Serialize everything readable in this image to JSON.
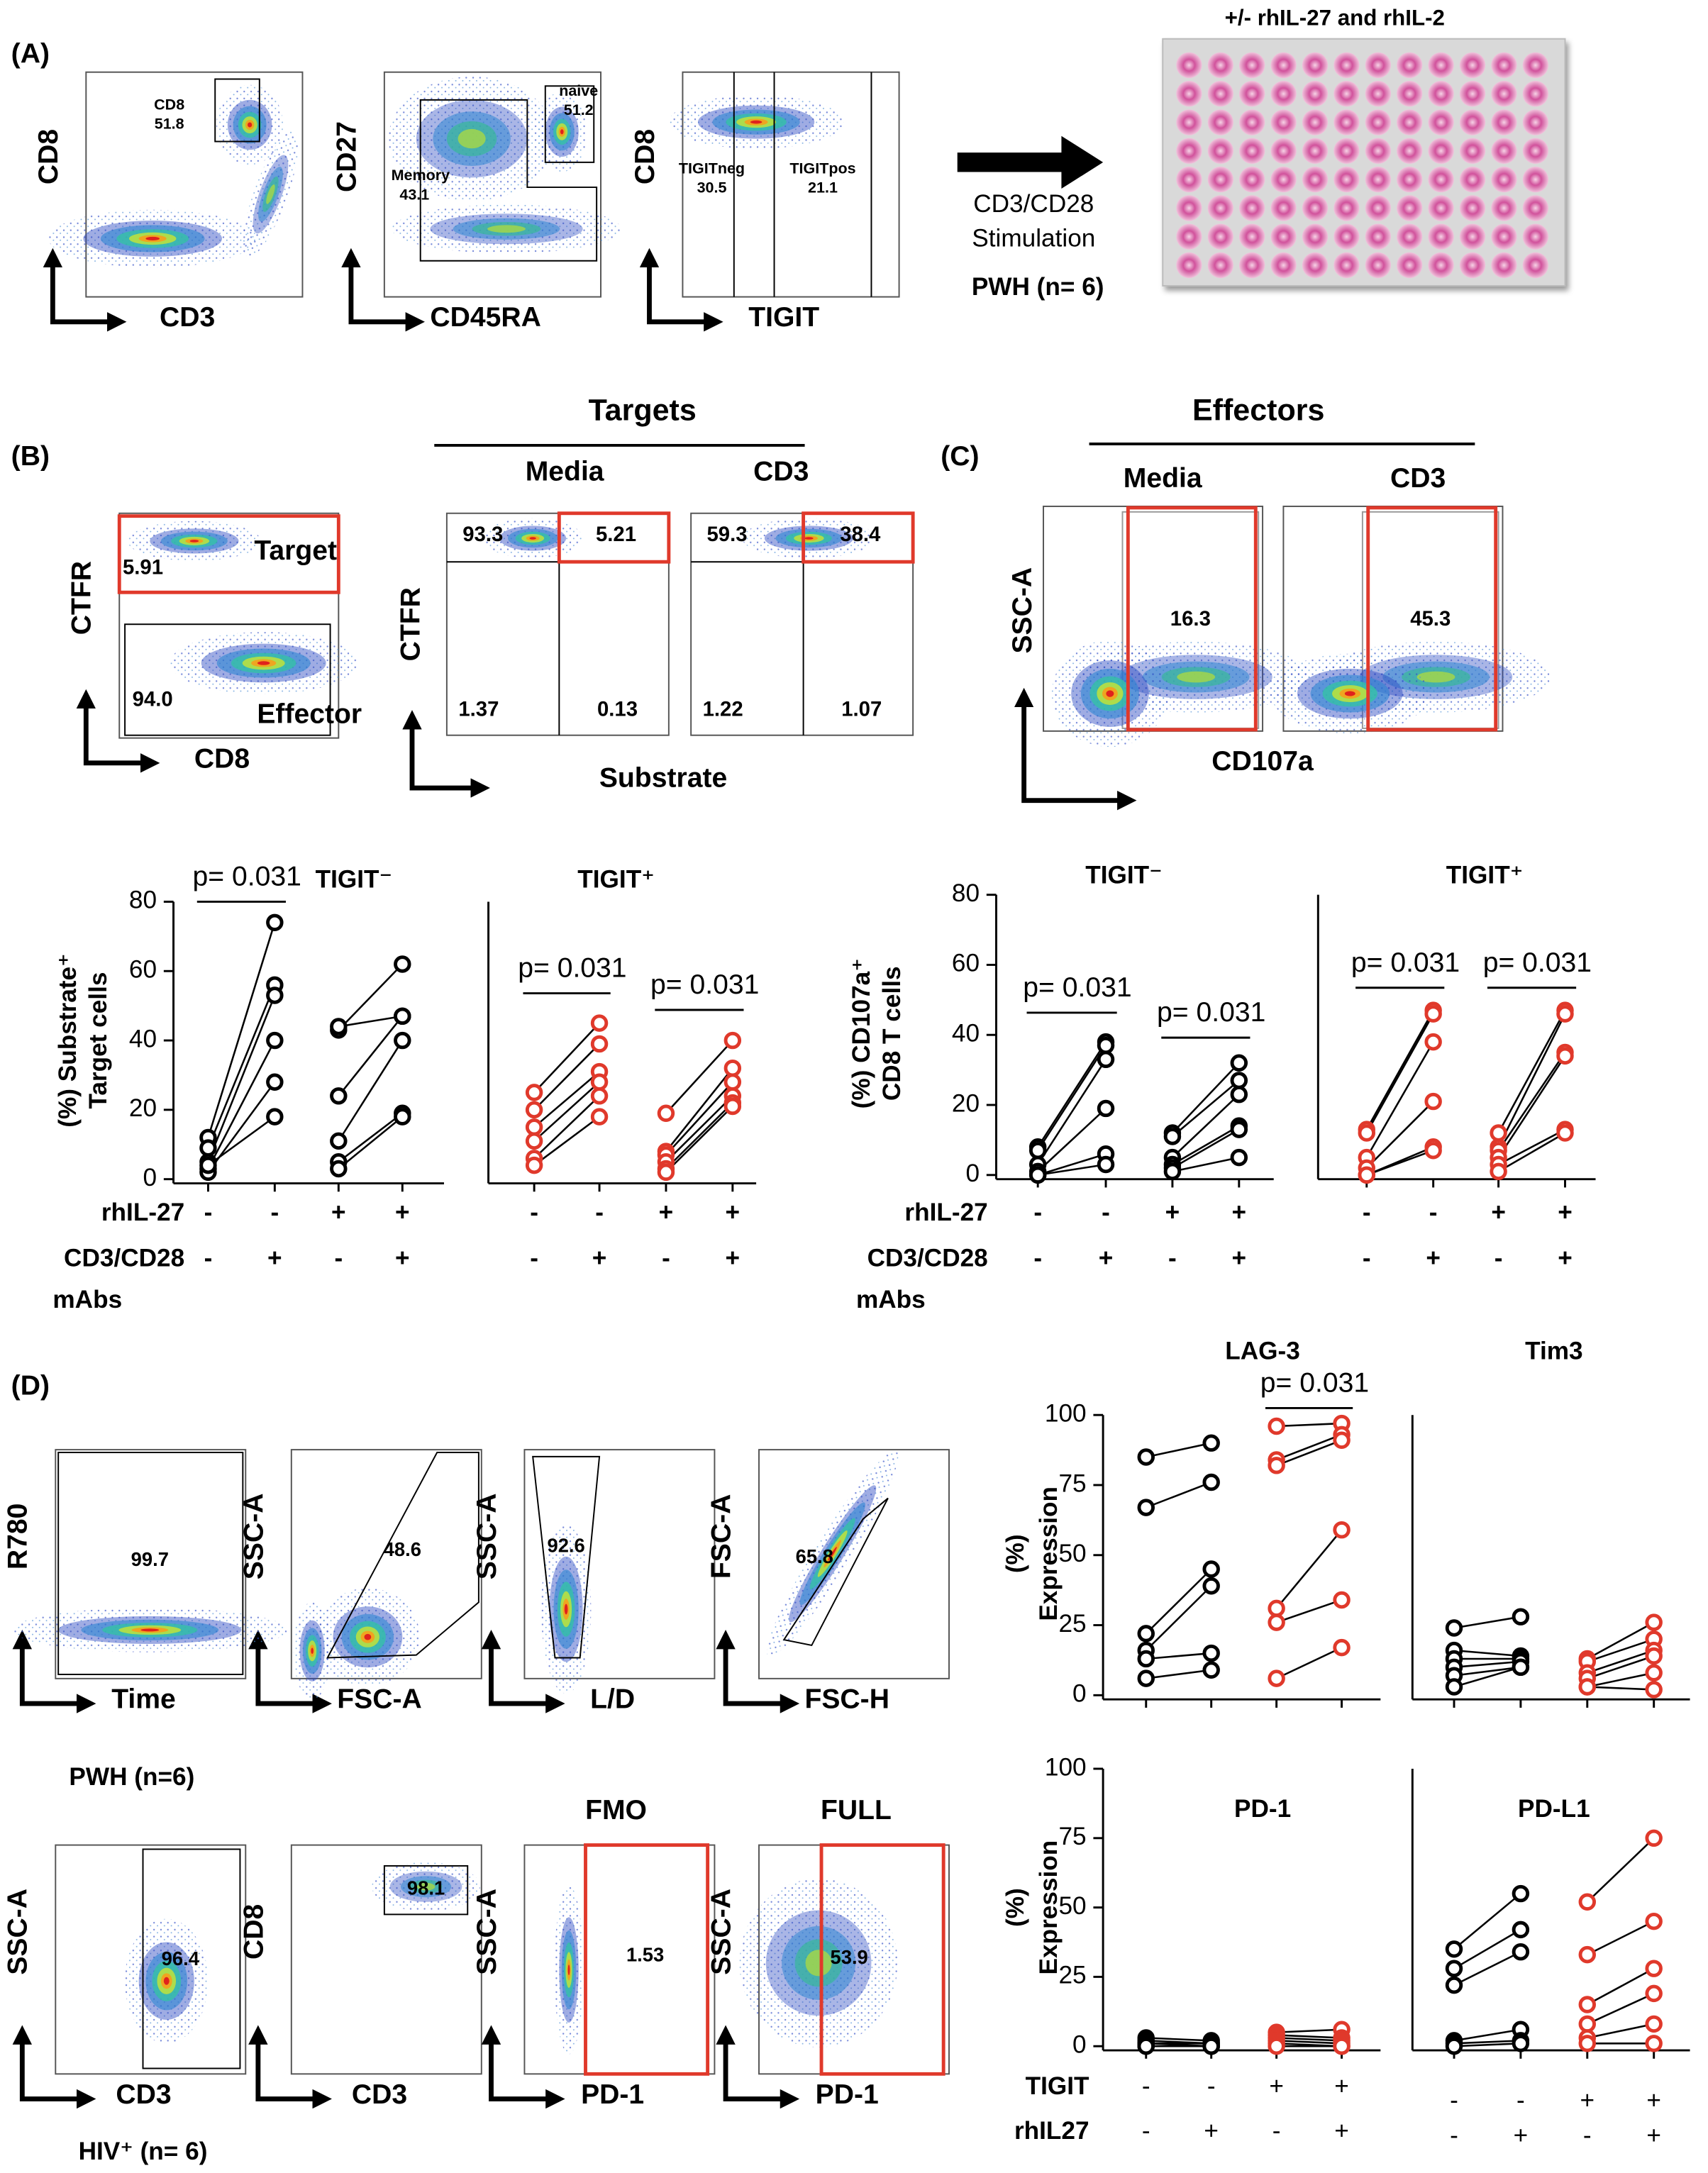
{
  "figure": {
    "panel_labels": [
      "(A)",
      "(B)",
      "(C)",
      "(D)"
    ],
    "a": {
      "plots": [
        {
          "y": "CD8",
          "x": "CD3",
          "gates": [
            "CD8",
            "51.8"
          ]
        },
        {
          "y": "CD27",
          "x": "CD45RA",
          "gates": [
            "naive",
            "51.2",
            "Memory",
            "43.1"
          ]
        },
        {
          "y": "CD8",
          "x": "TIGIT",
          "gates": [
            "TIGITneg",
            "30.5",
            "TIGITpos",
            "21.1"
          ]
        }
      ],
      "stimulation": [
        "CD3/CD28",
        "Stimulation"
      ],
      "cohort": "PWH (n= 6)",
      "plate_title": "+/- rhIL-27 and rhIL-2"
    },
    "b": {
      "plots": [
        {
          "y": "CTFR",
          "x": "CD8",
          "gates": [
            "Target",
            "5.91",
            "94.0",
            "Effector"
          ]
        }
      ],
      "targets": "Targets",
      "columns": [
        "Media",
        "CD3"
      ],
      "quadrants": [
        [
          "93.3",
          "5.21",
          "1.37",
          "0.13"
        ],
        [
          "59.3",
          "38.4",
          "1.22",
          "1.07"
        ]
      ],
      "y": "CTFR",
      "x": "Substrate"
    },
    "c": {
      "effectors": "Effectors",
      "columns": [
        "Media",
        "CD3"
      ],
      "gates": [
        "16.3",
        "45.3"
      ],
      "y": "SSC-A",
      "x": "CD107a"
    },
    "d": {
      "plots": [
        {
          "y": "R780",
          "x": "Time",
          "gate": "99.7"
        },
        {
          "y": "SSC-A",
          "x": "FSC-A",
          "gate": "48.6"
        },
        {
          "y": "SSC-A",
          "x": "L/D",
          "gate": "92.6"
        },
        {
          "y": "FSC-A",
          "x": "FSC-H",
          "gate": "65.8"
        },
        {
          "y": "SSC-A",
          "x": "CD3",
          "gate": "96.4"
        },
        {
          "y": "CD8",
          "x": "CD3",
          "gate": "98.1"
        },
        {
          "y": "SSC-A",
          "x": "PD-1",
          "gate": "1.53",
          "header": "FMO"
        },
        {
          "y": "SSC-A",
          "x": "PD-1",
          "gate": "53.9",
          "header": "FULL"
        }
      ],
      "cohort": "PWH (n=6)",
      "subset": "HIV⁺ (n= 6)"
    }
  },
  "conditions": {
    "bc": {
      "rows": [
        {
          "label": "rhIL-27",
          "signs": [
            "-",
            "-",
            "+",
            "+"
          ]
        },
        {
          "label": "CD3/CD28",
          "signs": [
            "-",
            "+",
            "-",
            "+"
          ]
        }
      ],
      "unit": "mAbs"
    },
    "d": {
      "rows": [
        {
          "label": "TIGIT",
          "signs": [
            "-",
            "-",
            "+",
            "+"
          ]
        },
        {
          "label": "rhIL27",
          "signs": [
            "-",
            "+",
            "-",
            "+"
          ]
        }
      ]
    }
  },
  "chart_data": [
    {
      "type": "paired-dot",
      "title": "TIGIT⁻",
      "ylabel": [
        "(%) Substrate⁺",
        "Target cells"
      ],
      "ylim": [
        0,
        80
      ],
      "yticks": [
        0,
        20,
        40,
        60,
        80
      ],
      "groups": [
        {
          "color": "#000000",
          "values": [
            12,
            9,
            5,
            3,
            2,
            4
          ]
        },
        {
          "color": "#000000",
          "values": [
            74,
            56,
            53,
            40,
            28,
            18
          ]
        },
        {
          "color": "#000000",
          "values": [
            43,
            44,
            24,
            11,
            5,
            3
          ]
        },
        {
          "color": "#000000",
          "values": [
            62,
            47,
            47,
            40,
            19,
            18
          ]
        }
      ],
      "pairs": [
        [
          0,
          1
        ],
        [
          2,
          3
        ]
      ],
      "annotations": [
        {
          "text": "p= 0.031",
          "groups": [
            0,
            1
          ]
        }
      ]
    },
    {
      "type": "paired-dot",
      "title": "TIGIT⁺",
      "ylim": [
        0,
        80
      ],
      "groups": [
        {
          "color": "#e0392b",
          "values": [
            25,
            20,
            15,
            11,
            6,
            4
          ]
        },
        {
          "color": "#e0392b",
          "values": [
            45,
            39,
            31,
            28,
            24,
            18
          ]
        },
        {
          "color": "#e0392b",
          "values": [
            19,
            8,
            7,
            5,
            3,
            2
          ]
        },
        {
          "color": "#e0392b",
          "values": [
            40,
            32,
            28,
            24,
            22,
            21
          ]
        }
      ],
      "pairs": [
        [
          0,
          1
        ],
        [
          2,
          3
        ]
      ],
      "annotations": [
        {
          "text": "p= 0.031",
          "groups": [
            0,
            1
          ]
        },
        {
          "text": "p= 0.031",
          "groups": [
            2,
            3
          ]
        }
      ]
    },
    {
      "type": "paired-dot",
      "title": "TIGIT⁻",
      "ylabel": [
        "(%) CD107a⁺",
        "CD8 T cells"
      ],
      "ylim": [
        0,
        80
      ],
      "yticks": [
        0,
        20,
        40,
        60,
        80
      ],
      "groups": [
        {
          "color": "#000000",
          "values": [
            8,
            7,
            3,
            1,
            0,
            0
          ]
        },
        {
          "color": "#000000",
          "values": [
            38,
            37,
            33,
            19,
            6,
            3
          ]
        },
        {
          "color": "#000000",
          "values": [
            12,
            11,
            5,
            3,
            2,
            1
          ]
        },
        {
          "color": "#000000",
          "values": [
            32,
            27,
            23,
            14,
            13,
            5
          ]
        }
      ],
      "pairs": [
        [
          0,
          1
        ],
        [
          2,
          3
        ]
      ],
      "annotations": [
        {
          "text": "p= 0.031",
          "groups": [
            0,
            1
          ]
        },
        {
          "text": "p= 0.031",
          "groups": [
            2,
            3
          ]
        }
      ]
    },
    {
      "type": "paired-dot",
      "title": "TIGIT⁺",
      "ylim": [
        0,
        80
      ],
      "groups": [
        {
          "color": "#e0392b",
          "values": [
            13,
            12,
            5,
            2,
            0,
            0
          ]
        },
        {
          "color": "#e0392b",
          "values": [
            47,
            46,
            38,
            21,
            8,
            7
          ]
        },
        {
          "color": "#e0392b",
          "values": [
            12,
            8,
            7,
            5,
            3,
            1
          ]
        },
        {
          "color": "#e0392b",
          "values": [
            47,
            46,
            35,
            34,
            13,
            12
          ]
        }
      ],
      "pairs": [
        [
          0,
          1
        ],
        [
          2,
          3
        ]
      ],
      "annotations": [
        {
          "text": "p= 0.031",
          "groups": [
            0,
            1
          ]
        },
        {
          "text": "p= 0.031",
          "groups": [
            2,
            3
          ]
        }
      ]
    },
    {
      "type": "paired-dot",
      "title": "LAG-3",
      "ylabel": [
        "(%)",
        "Expression"
      ],
      "ylim": [
        0,
        100
      ],
      "yticks": [
        0,
        25,
        50,
        75,
        100
      ],
      "groups": [
        {
          "color": "#000000",
          "values": [
            85,
            67,
            22,
            16,
            13,
            6
          ]
        },
        {
          "color": "#000000",
          "values": [
            90,
            76,
            45,
            39,
            15,
            9
          ]
        },
        {
          "color": "#e0392b",
          "values": [
            96,
            84,
            82,
            31,
            26,
            6
          ]
        },
        {
          "color": "#e0392b",
          "values": [
            97,
            93,
            91,
            59,
            34,
            17
          ]
        }
      ],
      "pairs": [
        [
          0,
          1
        ],
        [
          2,
          3
        ]
      ],
      "annotations": [
        {
          "text": "p= 0.031",
          "groups": [
            2,
            3
          ]
        }
      ]
    },
    {
      "type": "paired-dot",
      "title": "Tim3",
      "ylim": [
        0,
        100
      ],
      "groups": [
        {
          "color": "#000000",
          "values": [
            24,
            16,
            13,
            10,
            7,
            3
          ]
        },
        {
          "color": "#000000",
          "values": [
            28,
            14,
            13,
            12,
            10,
            10
          ]
        },
        {
          "color": "#e0392b",
          "values": [
            13,
            12,
            8,
            6,
            3,
            3
          ]
        },
        {
          "color": "#e0392b",
          "values": [
            26,
            20,
            16,
            14,
            8,
            2
          ]
        }
      ],
      "pairs": [
        [
          0,
          1
        ],
        [
          2,
          3
        ]
      ]
    },
    {
      "type": "paired-dot",
      "title": "PD-1",
      "ylabel": [
        "(%)",
        "Expression"
      ],
      "ylim": [
        0,
        100
      ],
      "yticks": [
        0,
        25,
        50,
        75,
        100
      ],
      "groups": [
        {
          "color": "#000000",
          "values": [
            3,
            2,
            1,
            1,
            0,
            0
          ]
        },
        {
          "color": "#000000",
          "values": [
            2,
            1,
            1,
            0,
            0,
            0
          ]
        },
        {
          "color": "#e0392b",
          "values": [
            5,
            4,
            3,
            2,
            1,
            0
          ]
        },
        {
          "color": "#e0392b",
          "values": [
            6,
            3,
            2,
            1,
            0,
            0
          ]
        }
      ],
      "pairs": [
        [
          0,
          1
        ],
        [
          2,
          3
        ]
      ]
    },
    {
      "type": "paired-dot",
      "title": "PD-L1",
      "ylim": [
        0,
        100
      ],
      "groups": [
        {
          "color": "#000000",
          "values": [
            35,
            28,
            22,
            2,
            1,
            0
          ]
        },
        {
          "color": "#000000",
          "values": [
            55,
            42,
            34,
            6,
            2,
            1
          ]
        },
        {
          "color": "#e0392b",
          "values": [
            52,
            33,
            15,
            8,
            3,
            1
          ]
        },
        {
          "color": "#e0392b",
          "values": [
            75,
            45,
            28,
            19,
            8,
            1
          ]
        }
      ],
      "pairs": [
        [
          0,
          1
        ],
        [
          2,
          3
        ]
      ]
    }
  ]
}
